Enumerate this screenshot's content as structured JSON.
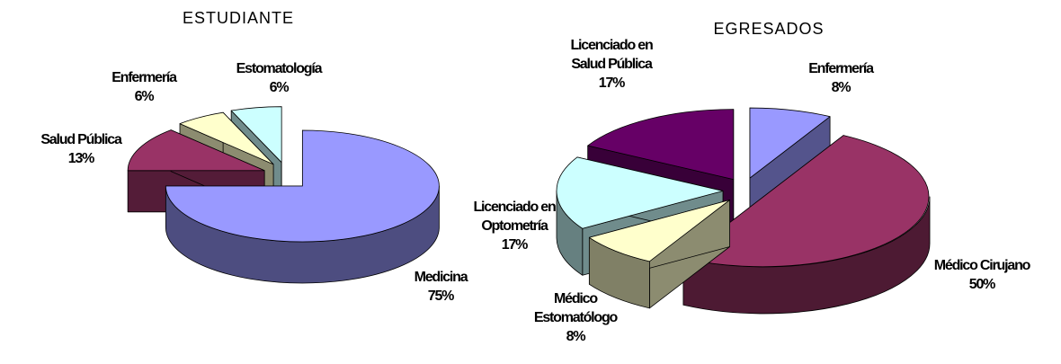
{
  "chart_data": [
    {
      "type": "pie",
      "title": "ESTUDIANTE",
      "categories": [
        "Medicina",
        "Salud Pública",
        "Enfermería",
        "Estomatología"
      ],
      "values": [
        75,
        13,
        6,
        6
      ],
      "value_labels": [
        "75%",
        "13%",
        "6%",
        "6%"
      ],
      "colors": [
        "#9999ff",
        "#993366",
        "#ffffcc",
        "#ccffff"
      ]
    },
    {
      "type": "pie",
      "title": "EGRESADOS",
      "categories": [
        "Enfermería",
        "Médico Cirujano",
        "Médico Estomatólogo",
        "Licenciado en Optometría",
        "Licenciado en Salud Pública"
      ],
      "values": [
        8,
        50,
        8,
        17,
        17
      ],
      "value_labels": [
        "8%",
        "50%",
        "8%",
        "17%",
        "17%"
      ],
      "colors": [
        "#9999ff",
        "#993366",
        "#ffffcc",
        "#ccffff",
        "#660066"
      ]
    }
  ]
}
